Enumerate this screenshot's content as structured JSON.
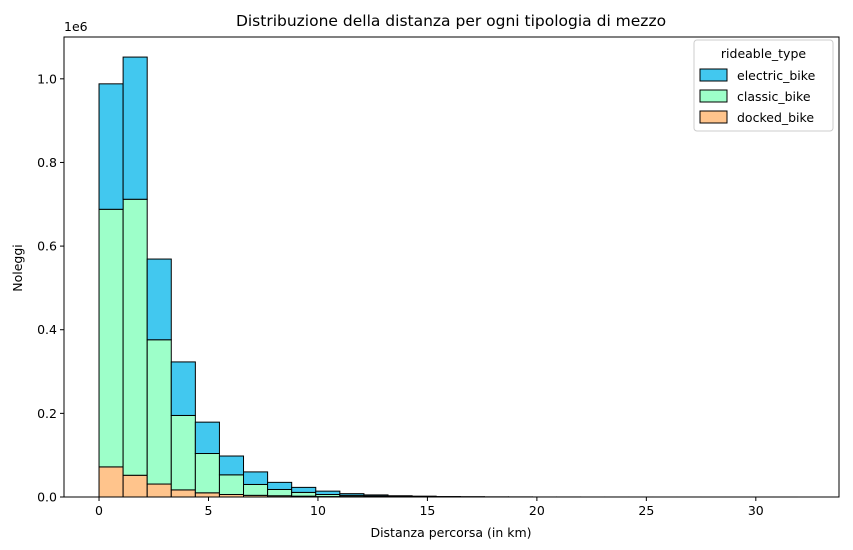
{
  "chart_data": {
    "type": "bar",
    "stacked": true,
    "title": "Distribuzione della distanza per ogni tipologia di mezzo",
    "xlabel": "Distanza percorsa (in km)",
    "ylabel": "Noleggi",
    "y_scale_label": "1e6",
    "xlim": [
      -1.6,
      33.8
    ],
    "ylim": [
      0,
      1.1
    ],
    "x_ticks": [
      0,
      5,
      10,
      15,
      20,
      25,
      30
    ],
    "y_ticks": [
      0.0,
      0.2,
      0.4,
      0.6,
      0.8,
      1.0
    ],
    "x_tick_labels": [
      "0",
      "5",
      "10",
      "15",
      "20",
      "25",
      "30"
    ],
    "y_tick_labels": [
      "0.0",
      "0.2",
      "0.4",
      "0.6",
      "0.8",
      "1.0"
    ],
    "grid": false,
    "legend": {
      "title": "rideable_type",
      "placement": "top-right"
    },
    "bin_start": 0.0,
    "bin_width": 1.1,
    "bin_count": 29,
    "series": [
      {
        "name": "docked_bike",
        "color": "#FFC48C",
        "values": [
          0.072,
          0.052,
          0.031,
          0.017,
          0.01,
          0.006,
          0.004,
          0.003,
          0.002,
          0.001,
          0.001,
          0.0006,
          0.0004,
          0.0002,
          0.0001,
          0.0001,
          0,
          0,
          0,
          0,
          0,
          0,
          0,
          0,
          0,
          0,
          0,
          0,
          0
        ]
      },
      {
        "name": "classic_bike",
        "color": "#9DFFC9",
        "values": [
          0.616,
          0.66,
          0.345,
          0.178,
          0.094,
          0.047,
          0.026,
          0.015,
          0.009,
          0.005,
          0.003,
          0.0018,
          0.0011,
          0.0007,
          0.0004,
          0.0002,
          0.0001,
          0.0001,
          0,
          0,
          0,
          0,
          0,
          0,
          0,
          0,
          0,
          0,
          0
        ]
      },
      {
        "name": "electric_bike",
        "color": "#42C8EF",
        "values": [
          0.3,
          0.34,
          0.193,
          0.128,
          0.075,
          0.045,
          0.03,
          0.017,
          0.012,
          0.008,
          0.004,
          0.0026,
          0.0015,
          0.0011,
          0.0005,
          0.0003,
          0.0002,
          0.0001,
          0.0001,
          0.0001,
          5e-05,
          5e-05,
          3e-05,
          2e-05,
          2e-05,
          1e-05,
          1e-05,
          1e-05,
          1e-05
        ]
      }
    ],
    "legend_order": [
      "electric_bike",
      "classic_bike",
      "docked_bike"
    ]
  }
}
